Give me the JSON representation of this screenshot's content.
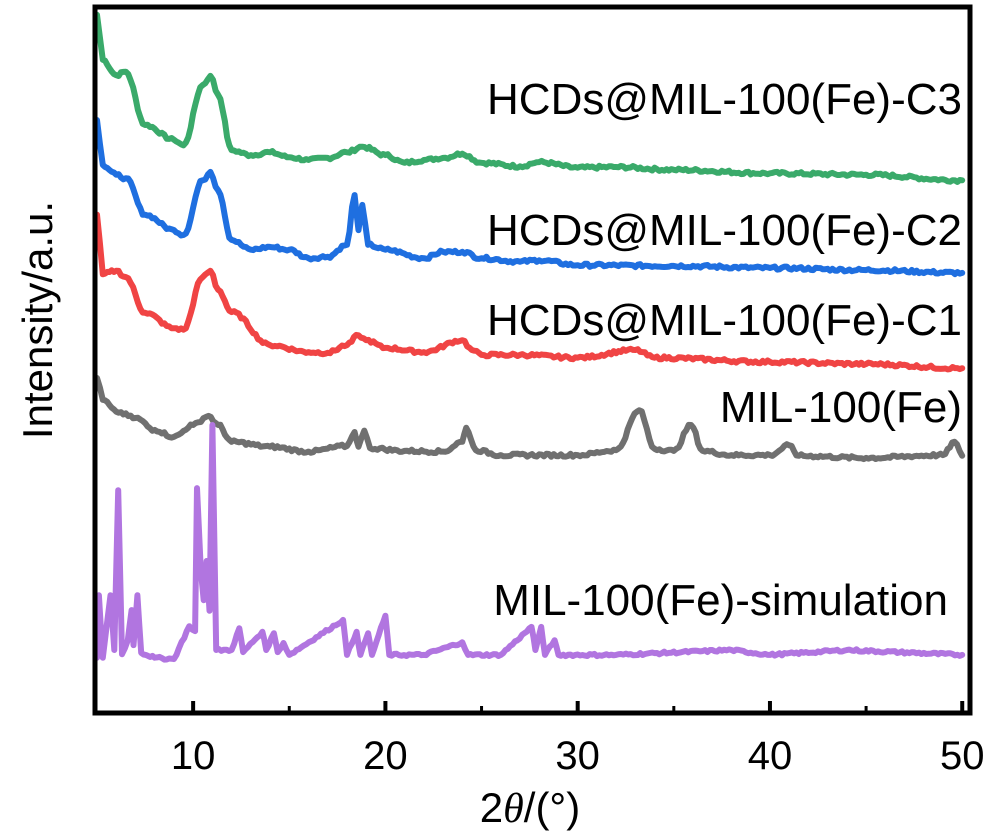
{
  "chart_data": {
    "type": "line",
    "title": "",
    "xlabel": "2θ/(°)",
    "xlabel_parts": {
      "prefix": "2",
      "theta": "θ",
      "suffix": "/(°)"
    },
    "ylabel": "Intensity/a.u.",
    "xlim": [
      5,
      50.3
    ],
    "ylim": [
      0,
      100
    ],
    "grid": false,
    "legend": "inline labels to the right of each trace",
    "xticks": [
      10,
      20,
      30,
      40,
      50
    ],
    "xtick_labels": [
      "10",
      "20",
      "30",
      "40",
      "50"
    ],
    "xminor_ticks": [
      15,
      25,
      35,
      45
    ],
    "yticks": [],
    "series": [
      {
        "name": "HCDs@MIL-100(Fe)-C3",
        "color": "#3aaa6a",
        "x": [
          5,
          5.3,
          6,
          6.5,
          7.5,
          9,
          9.5,
          10.5,
          10.9,
          11.3,
          12,
          13,
          14,
          15,
          16,
          17,
          18,
          18.8,
          20,
          21,
          22,
          23,
          24,
          25,
          27,
          28,
          30,
          32,
          35,
          40,
          45,
          50
        ],
        "y": [
          99.3,
          92.9,
          90.7,
          91.2,
          83.6,
          81.5,
          80.7,
          89.3,
          90.6,
          87.9,
          80.0,
          79.3,
          79.7,
          79.0,
          78.6,
          78.9,
          79.7,
          80.5,
          79.3,
          78.2,
          78.6,
          78.9,
          79.5,
          78.2,
          77.7,
          78.3,
          77.5,
          77.6,
          77.2,
          76.7,
          76.5,
          75.7
        ]
      },
      {
        "name": "HCDs@MIL-100(Fe)-C2",
        "color": "#1f6fe0",
        "x": [
          5,
          5.3,
          6,
          6.5,
          7.5,
          9,
          9.5,
          10.5,
          10.9,
          11.3,
          12,
          13,
          14,
          15,
          16,
          17,
          18,
          18.4,
          18.6,
          18.8,
          19.1,
          20,
          22,
          23,
          24,
          25,
          27,
          28,
          30,
          35,
          40,
          45,
          50
        ],
        "y": [
          84.3,
          77.9,
          76.5,
          76.0,
          70.8,
          68.6,
          67.9,
          75.7,
          76.9,
          74.3,
          67.2,
          65.8,
          66.2,
          65.8,
          64.6,
          64.8,
          66.5,
          73.6,
          68.6,
          72.2,
          66.5,
          65.8,
          64.6,
          65.5,
          65.5,
          64.6,
          64.1,
          64.3,
          63.6,
          63.5,
          63.2,
          62.9,
          62.5
        ]
      },
      {
        "name": "HCDs@MIL-100(Fe)-C1",
        "color": "#f04444",
        "x": [
          5,
          5.3,
          6,
          6.5,
          7.5,
          9,
          9.5,
          10.5,
          10.9,
          11.3,
          12,
          14,
          16,
          17,
          18,
          18.6,
          19,
          20,
          22,
          24,
          24.5,
          25,
          27,
          30,
          33,
          34,
          40,
          45,
          50
        ],
        "y": [
          70.8,
          62.3,
          62.8,
          61.9,
          56.8,
          54.6,
          54.4,
          61.9,
          62.8,
          60.1,
          56.9,
          52.2,
          51.2,
          51.1,
          52.2,
          53.6,
          52.9,
          51.8,
          51.2,
          52.9,
          51.5,
          50.8,
          50.8,
          50.4,
          51.5,
          50.4,
          49.8,
          49.5,
          48.9
        ]
      },
      {
        "name": "MIL-100(Fe)",
        "color": "#707070",
        "x": [
          5,
          5.3,
          6,
          7,
          8,
          9,
          10,
          10.8,
          11.3,
          12,
          14,
          16,
          18,
          18.4,
          18.6,
          18.9,
          19.2,
          21,
          23,
          24,
          24.2,
          24.7,
          26,
          30,
          32,
          33.2,
          34,
          35,
          35.9,
          36.5,
          38,
          40,
          41,
          41.5,
          45,
          49,
          49.6,
          50
        ],
        "y": [
          47.5,
          44.4,
          42.7,
          41.8,
          40.1,
          39.1,
          40.8,
          42.1,
          40.8,
          38.4,
          37.7,
          37.0,
          37.8,
          39.8,
          37.7,
          40.0,
          37.5,
          37.1,
          37.0,
          38.4,
          40.4,
          37.2,
          36.5,
          36.5,
          37.2,
          42.9,
          37.4,
          37.1,
          40.8,
          37.1,
          36.5,
          36.5,
          37.9,
          36.4,
          36.1,
          36.5,
          38.4,
          36.4
        ]
      },
      {
        "name": "MIL-100(Fe)-simulation",
        "color": "#b175e0",
        "x": [
          5,
          5.1,
          5.3,
          5.7,
          5.9,
          6.1,
          6.3,
          6.6,
          6.8,
          6.9,
          7.1,
          7.3,
          8,
          9,
          9.8,
          10.1,
          10.2,
          10.4,
          10.55,
          10.7,
          10.85,
          11.0,
          11.2,
          12,
          12.4,
          12.6,
          13.6,
          13.8,
          14.2,
          14.4,
          14.7,
          15,
          17.8,
          18,
          18.5,
          18.7,
          19.1,
          19.3,
          20,
          20.2,
          22,
          24,
          24.3,
          26,
          27.6,
          27.8,
          28.1,
          28.3,
          28.8,
          29,
          32,
          38,
          40,
          44,
          50
        ],
        "y": [
          7.6,
          16.5,
          7.6,
          16.5,
          8.7,
          31.5,
          8.1,
          10.1,
          14.4,
          9.4,
          16.5,
          8.3,
          7.6,
          7.4,
          12.1,
          11.4,
          31.8,
          20.1,
          15.8,
          21.4,
          14.3,
          40.8,
          8.7,
          8.7,
          11.8,
          8.4,
          11.3,
          8.7,
          11.1,
          8.4,
          9.7,
          8.0,
          13.0,
          8.0,
          11.3,
          8.0,
          11.1,
          8.0,
          13.6,
          8.0,
          8.0,
          9.8,
          8.0,
          8.0,
          12.0,
          8.7,
          12.0,
          8.0,
          10.1,
          8.0,
          8.0,
          8.7,
          8.0,
          8.7,
          8.0
        ]
      }
    ],
    "annotations": [
      {
        "text": "HCDs@MIL-100(Fe)-C3",
        "series": "HCDs@MIL-100(Fe)-C3"
      },
      {
        "text": "HCDs@MIL-100(Fe)-C2",
        "series": "HCDs@MIL-100(Fe)-C2"
      },
      {
        "text": "HCDs@MIL-100(Fe)-C1",
        "series": "HCDs@MIL-100(Fe)-C1"
      },
      {
        "text": "MIL-100(Fe)",
        "series": "MIL-100(Fe)"
      },
      {
        "text": "MIL-100(Fe)-simulation",
        "series": "MIL-100(Fe)-simulation"
      }
    ]
  }
}
